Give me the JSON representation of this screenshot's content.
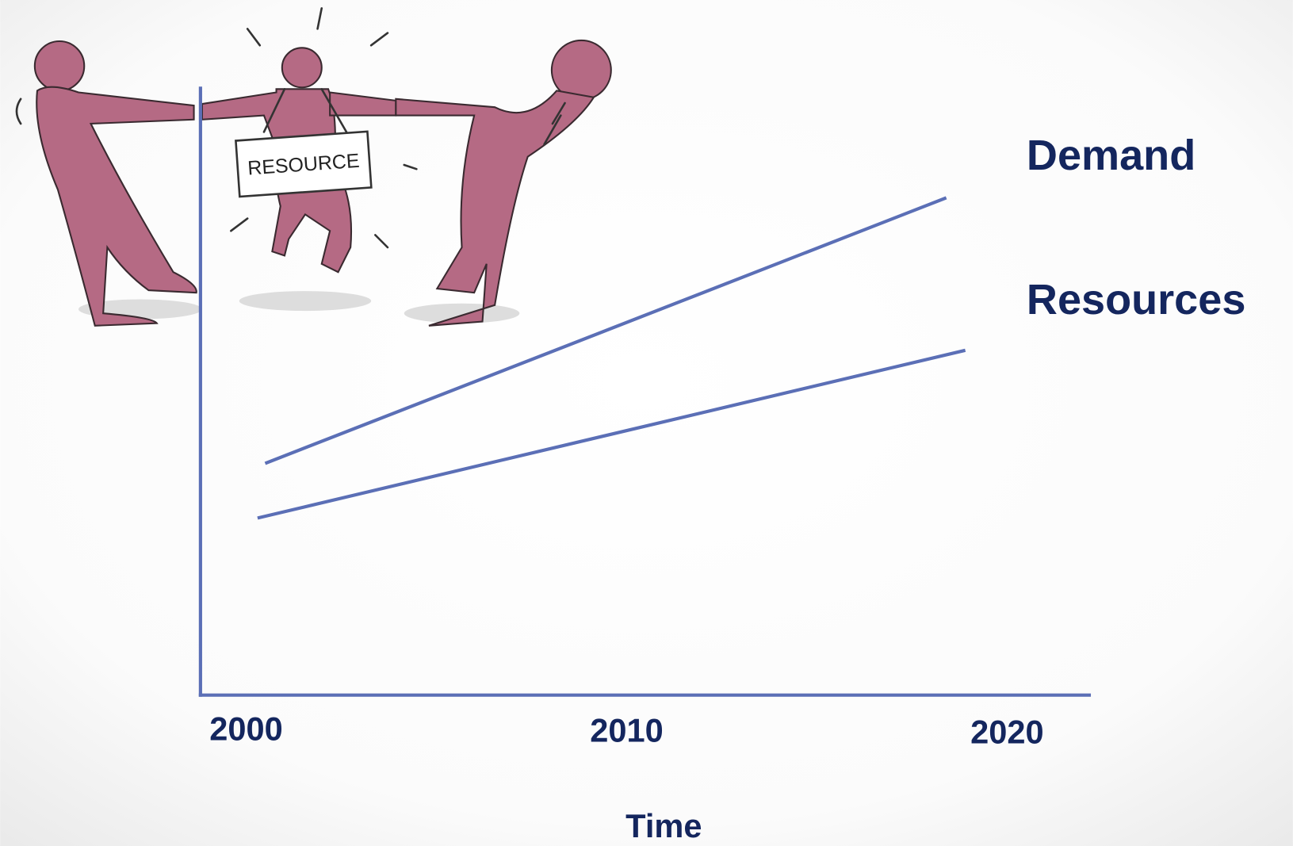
{
  "chart_data": {
    "type": "line",
    "x_label": "Time",
    "xlim": [
      1998.8,
      2022.2
    ],
    "ylim": [
      0,
      100
    ],
    "xticks": [
      2000,
      2010,
      2020
    ],
    "series": [
      {
        "name": "Demand",
        "color": "#5b6fb6",
        "x": [
          2000.5,
          2018.4
        ],
        "values": [
          38,
          81.7
        ]
      },
      {
        "name": "Resources",
        "color": "#5b6fb6",
        "x": [
          2000.3,
          2018.9
        ],
        "values": [
          29,
          56.6
        ]
      }
    ]
  },
  "illustration": {
    "sign": "RESOURCE"
  }
}
